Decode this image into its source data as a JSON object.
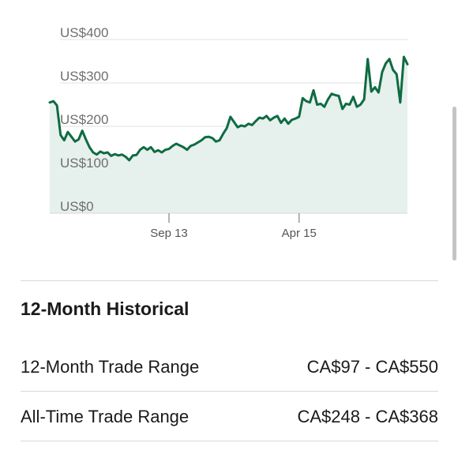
{
  "chart_data": {
    "type": "area",
    "y_ticks": [
      "US$400",
      "US$300",
      "US$200",
      "US$100",
      "US$0"
    ],
    "y_tick_values": [
      400,
      300,
      200,
      100,
      0
    ],
    "ylim": [
      0,
      400
    ],
    "x_ticks": [
      "Sep 13",
      "Apr 15"
    ],
    "x_tick_index": [
      33,
      69
    ],
    "grid": true,
    "line_color": "#0f6b42",
    "fill_color": "#e6f0ec",
    "series": [
      {
        "values": [
          255,
          258,
          248,
          180,
          168,
          187,
          176,
          165,
          170,
          190,
          170,
          152,
          140,
          135,
          142,
          138,
          140,
          132,
          136,
          133,
          135,
          130,
          122,
          133,
          134,
          146,
          152,
          146,
          152,
          141,
          145,
          140,
          146,
          148,
          155,
          160,
          156,
          152,
          146,
          155,
          158,
          163,
          168,
          175,
          176,
          173,
          165,
          168,
          183,
          196,
          222,
          210,
          198,
          202,
          200,
          206,
          203,
          212,
          220,
          218,
          224,
          214,
          220,
          224,
          208,
          218,
          206,
          215,
          218,
          222,
          265,
          258,
          255,
          283,
          250,
          252,
          245,
          262,
          275,
          272,
          270,
          240,
          252,
          250,
          268,
          245,
          250,
          262,
          355,
          280,
          290,
          278,
          325,
          345,
          355,
          330,
          320,
          255,
          360,
          343
        ]
      }
    ]
  },
  "historical": {
    "title": "12-Month Historical",
    "rows": [
      {
        "label": "12-Month Trade Range",
        "value": "CA$97 - CA$550"
      },
      {
        "label": "All-Time Trade Range",
        "value": "CA$248 - CA$368"
      }
    ]
  }
}
